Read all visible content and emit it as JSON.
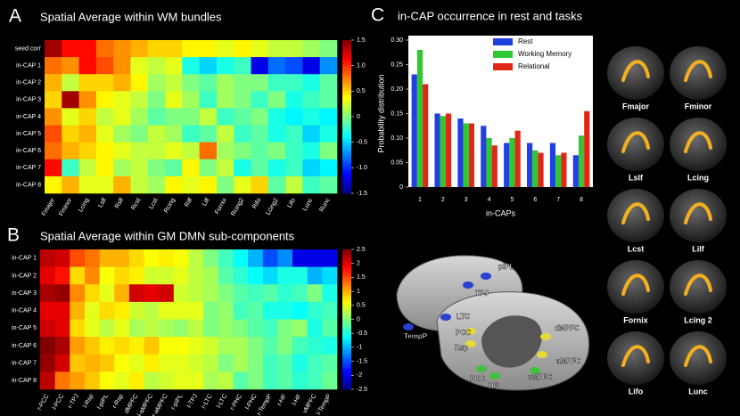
{
  "chart_data": [
    {
      "type": "heatmap",
      "panel": "A",
      "title": "Spatial Average within WM bundles",
      "rows": [
        "seed corr",
        "in-CAP 1",
        "in-CAP 2",
        "in-CAP 3",
        "in-CAP 4",
        "in-CAP 5",
        "in-CAP 6",
        "in-CAP 7",
        "in-CAP 8"
      ],
      "columns": [
        "Fmajor",
        "Fminor",
        "Lcing",
        "Lslf",
        "Rslf",
        "Rcst",
        "Lcst",
        "Rcing",
        "Rilf",
        "Lilf",
        "Fornix",
        "Rcing2",
        "Rifo",
        "Lcing2",
        "Lifo",
        "Lunc",
        "Runc"
      ],
      "values": [
        [
          1.4,
          1.1,
          1.1,
          0.8,
          0.7,
          0.6,
          0.5,
          0.5,
          0.4,
          0.4,
          0.3,
          0.4,
          0.3,
          0.2,
          0.2,
          0.1,
          0.0
        ],
        [
          0.8,
          0.7,
          1.1,
          0.9,
          0.7,
          0.3,
          0.2,
          0.3,
          -0.3,
          -0.5,
          -0.3,
          -0.2,
          -1.2,
          -0.8,
          -0.9,
          -1.2,
          -0.7
        ],
        [
          0.6,
          0.2,
          0.5,
          0.5,
          0.6,
          0.4,
          0.1,
          0.2,
          0.0,
          -0.1,
          0.1,
          0.0,
          0.0,
          -0.2,
          -0.2,
          -0.3,
          -0.1
        ],
        [
          0.5,
          1.4,
          0.7,
          0.4,
          0.3,
          0.2,
          0.0,
          0.3,
          0.1,
          -0.2,
          0.1,
          0.0,
          -0.2,
          0.0,
          -0.3,
          -0.2,
          -0.1
        ],
        [
          0.7,
          0.3,
          0.5,
          0.2,
          0.3,
          0.1,
          -0.1,
          0.0,
          0.0,
          0.2,
          -0.2,
          -0.1,
          0.0,
          -0.3,
          -0.4,
          -0.3,
          -0.4
        ],
        [
          0.9,
          0.5,
          0.6,
          0.3,
          0.1,
          0.0,
          0.2,
          0.1,
          -0.2,
          -0.1,
          0.2,
          -0.2,
          -0.1,
          -0.3,
          -0.2,
          -0.5,
          -0.3
        ],
        [
          0.8,
          0.6,
          0.5,
          0.4,
          0.3,
          0.2,
          0.2,
          0.3,
          0.2,
          0.8,
          0.1,
          0.0,
          -0.1,
          0.0,
          -0.2,
          -0.3,
          0.0
        ],
        [
          1.1,
          -0.2,
          0.2,
          0.4,
          0.1,
          0.2,
          0.0,
          -0.1,
          0.4,
          0.0,
          0.2,
          -0.3,
          -0.1,
          -0.3,
          -0.2,
          -0.5,
          -0.4
        ],
        [
          0.4,
          0.6,
          0.3,
          0.3,
          0.6,
          0.2,
          0.1,
          0.4,
          0.3,
          0.4,
          0.0,
          0.3,
          0.5,
          -0.1,
          0.2,
          -0.2,
          -0.1
        ]
      ],
      "clim": [
        -1.5,
        1.5
      ],
      "cticks": [
        1.5,
        {
          "value": 1,
          "label": "1.0"
        },
        0.5,
        0,
        -0.5,
        {
          "value": -1,
          "label": "-1.0"
        },
        -1.5
      ]
    },
    {
      "type": "heatmap",
      "panel": "B",
      "title": "Spatial Average within GM DMN sub-components",
      "rows": [
        "in-CAP 1",
        "in-CAP 2",
        "in-CAP 3",
        "in-CAP 4",
        "in-CAP 5",
        "in-CAP 6",
        "in-CAP 7",
        "in-CAP 8"
      ],
      "columns": [
        "r-PCC",
        "l-PCC",
        "r-TPJ",
        "l-Rsp",
        "l-pIPL",
        "r-Rsp",
        "dMPFC",
        "l-aMPFC",
        "r-aMPFC",
        "r-pIPL",
        "l-TPJ",
        "r-LTC",
        "l-LTC",
        "r-PHC",
        "l-PHC",
        "r-TempP",
        "r-HF",
        "l-HF",
        "vMPFC",
        "l-TempP"
      ],
      "values": [
        [
          2.2,
          2.1,
          1.5,
          1.3,
          1.0,
          1.0,
          0.8,
          0.6,
          0.7,
          0.6,
          0.3,
          0.0,
          -0.3,
          -0.6,
          -1.0,
          -1.5,
          -1.2,
          -2.0,
          -2.0,
          -2.0
        ],
        [
          2.0,
          1.8,
          0.8,
          1.2,
          0.6,
          0.8,
          0.7,
          0.4,
          0.4,
          0.5,
          0.3,
          0.2,
          -0.2,
          -0.4,
          -0.6,
          -0.8,
          -0.5,
          -0.5,
          -1.0,
          -0.8
        ],
        [
          2.3,
          2.4,
          1.2,
          0.8,
          0.5,
          1.0,
          2.1,
          2.0,
          2.1,
          0.4,
          0.3,
          0.2,
          0.0,
          -0.2,
          -0.3,
          -0.2,
          -0.4,
          -0.3,
          0.0,
          -0.5
        ],
        [
          2.0,
          2.0,
          1.0,
          0.5,
          0.8,
          0.7,
          0.4,
          0.3,
          0.5,
          0.5,
          0.5,
          0.0,
          0.1,
          -0.3,
          -0.2,
          -0.5,
          -0.5,
          -0.6,
          -0.4,
          -0.3
        ],
        [
          2.1,
          2.0,
          0.8,
          0.5,
          0.3,
          0.5,
          0.2,
          0.3,
          0.2,
          0.1,
          0.3,
          0.0,
          0.1,
          0.0,
          -0.2,
          -0.3,
          0.0,
          0.1,
          -0.5,
          -0.2
        ],
        [
          2.5,
          2.3,
          1.1,
          0.9,
          0.7,
          0.8,
          0.7,
          0.9,
          0.6,
          0.6,
          0.5,
          0.4,
          0.2,
          0.2,
          0.0,
          -0.2,
          0.0,
          -0.3,
          -0.4,
          -0.5
        ],
        [
          2.4,
          2.1,
          0.9,
          1.0,
          0.9,
          0.6,
          0.5,
          0.7,
          0.5,
          0.5,
          0.4,
          0.3,
          0.0,
          0.2,
          0.0,
          -0.3,
          -0.2,
          -0.5,
          -0.3,
          -0.2
        ],
        [
          2.2,
          1.3,
          1.1,
          0.9,
          0.6,
          0.5,
          0.7,
          0.3,
          0.4,
          0.5,
          0.5,
          0.2,
          0.3,
          -0.2,
          0.0,
          -0.3,
          -0.2,
          -0.4,
          -0.3,
          -0.1
        ]
      ],
      "clim": [
        -2.5,
        2.5
      ],
      "cticks": [
        2.5,
        2,
        1.5,
        1,
        0.5,
        0,
        -0.5,
        -1,
        -1.5,
        -2,
        -2.5
      ]
    },
    {
      "type": "bar",
      "panel": "C",
      "title": "in-CAP occurrence in rest and tasks",
      "xlabel": "in-CAPs",
      "ylabel": "Probability distribution",
      "categories": [
        "1",
        "2",
        "3",
        "4",
        "5",
        "6",
        "7",
        "8"
      ],
      "series": [
        {
          "name": "Rest",
          "color": "#2040e0",
          "values": [
            0.23,
            0.15,
            0.14,
            0.125,
            0.09,
            0.09,
            0.09,
            0.065
          ]
        },
        {
          "name": "Working Memory",
          "color": "#30c830",
          "values": [
            0.28,
            0.145,
            0.13,
            0.1,
            0.1,
            0.075,
            0.065,
            0.105
          ]
        },
        {
          "name": "Relational",
          "color": "#e02818",
          "values": [
            0.21,
            0.15,
            0.13,
            0.085,
            0.115,
            0.07,
            0.07,
            0.155
          ]
        }
      ],
      "ylim": [
        0,
        0.3
      ],
      "yticks": [
        0,
        0.05,
        {
          "value": 0.1,
          "label": "0.10"
        },
        0.15,
        {
          "value": 0.2,
          "label": "0.20"
        },
        0.25,
        {
          "value": 0.3,
          "label": "0.30"
        }
      ],
      "legend": "upper right"
    }
  ],
  "brain_regions": [
    "pIPL",
    "TPJ",
    "LTC",
    "TempP",
    "PCC",
    "Rsp",
    "dMPFC",
    "aMPFC",
    "PHC",
    "HF",
    "vMPFC"
  ],
  "tracts": [
    "Fmajor",
    "Fminor",
    "Lslf",
    "Lcing",
    "Lcst",
    "Lilf",
    "Fornix",
    "Lcing 2",
    "Lifo",
    "Lunc"
  ]
}
